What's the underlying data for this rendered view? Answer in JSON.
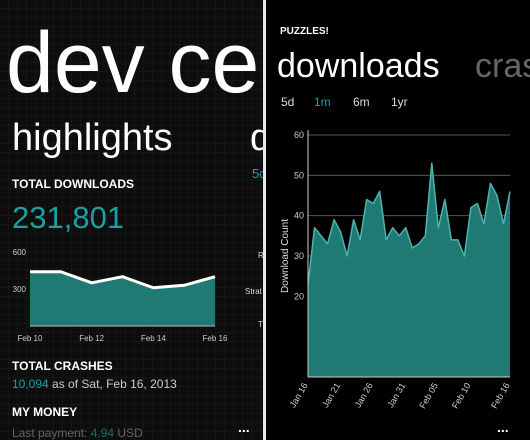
{
  "left": {
    "app_title": "dev ce",
    "pivot": "highlights",
    "pivot_next": "d",
    "next_tab": "5d",
    "total_downloads_label": "TOTAL DOWNLOADS",
    "total_downloads": "231,801",
    "side_labels": [
      "R",
      "Strat",
      "T"
    ],
    "total_crashes_label": "TOTAL CRASHES",
    "crashes_count": "10,094",
    "crashes_date": "as of Sat, Feb 16, 2013",
    "money_label": "MY MONEY",
    "last_payment_label": "Last payment:",
    "last_payment_amount": "4.94",
    "last_payment_currency": "USD",
    "menu": "..."
  },
  "right": {
    "app_name": "PUZZLES!",
    "pivot": "downloads",
    "pivot_next": "cras",
    "tabs": [
      "5d",
      "1m",
      "6m",
      "1yr"
    ],
    "active_tab": 1,
    "menu": "..."
  },
  "chart_data": [
    {
      "type": "area",
      "categories": [
        "Feb 10",
        null,
        "Feb 12",
        null,
        "Feb 14",
        null,
        "Feb 16"
      ],
      "values": [
        440,
        440,
        350,
        400,
        310,
        330,
        400
      ],
      "ylim": [
        0,
        600
      ],
      "yticks": [
        300,
        600
      ],
      "color": "#1f7a73",
      "line_color": "#ffffff",
      "grid": false
    },
    {
      "type": "area",
      "y_label": "Download Count",
      "categories": [
        "Jan 16",
        null,
        null,
        null,
        null,
        "Jan 21",
        null,
        null,
        null,
        null,
        "Jan 26",
        null,
        null,
        null,
        null,
        "Jan 31",
        null,
        null,
        null,
        null,
        "Feb 05",
        null,
        null,
        null,
        null,
        "Feb 10",
        null,
        null,
        null,
        null,
        null,
        "Feb 16"
      ],
      "values": [
        23,
        37,
        35,
        33,
        39,
        36,
        30,
        39,
        34,
        44,
        43,
        46,
        34,
        37,
        35,
        37,
        32,
        33,
        35,
        53,
        37,
        44,
        34,
        34,
        30,
        42,
        43,
        38,
        48,
        45,
        38,
        46
      ],
      "ylim": [
        0,
        60
      ],
      "yticks": [
        20,
        30,
        40,
        50,
        60
      ],
      "color": "#1f7a73",
      "line_color": "#4fb3ad",
      "grid": true
    }
  ]
}
